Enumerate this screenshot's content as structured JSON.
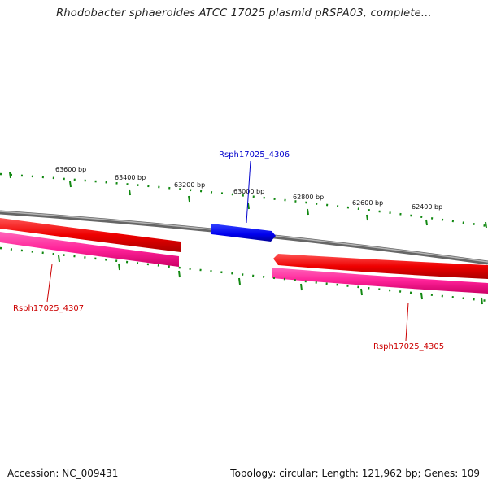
{
  "title": "Rhodobacter sphaeroides ATCC 17025 plasmid pRSPA03, complete...",
  "accession": "Accession: NC_009431",
  "summary": "Topology: circular; Length: 121,962 bp; Genes: 109",
  "colors": {
    "forward_strand": "#ff0000",
    "reverse_strand": "#ff3399",
    "highlight_gene": "#0000ee",
    "backbone": "#888888",
    "ticks": "#118811",
    "red_label": "#cc0000",
    "blue_label": "#0000cc"
  },
  "scale_labels": [
    "63600 bp",
    "63400 bp",
    "63200 bp",
    "63000 bp",
    "62800 bp",
    "62600 bp",
    "62400 bp"
  ],
  "genes": [
    {
      "name": "Rsph17025_4306",
      "strand": "forward",
      "color": "blue"
    },
    {
      "name": "Rsph17025_4307",
      "strand": "reverse",
      "color": "red"
    },
    {
      "name": "Rsph17025_4305",
      "strand": "reverse",
      "color": "red"
    }
  ]
}
